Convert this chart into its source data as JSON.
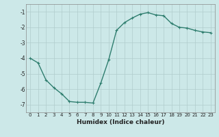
{
  "x": [
    0,
    1,
    2,
    3,
    4,
    5,
    6,
    7,
    8,
    9,
    10,
    11,
    12,
    13,
    14,
    15,
    16,
    17,
    18,
    19,
    20,
    21,
    22,
    23
  ],
  "y": [
    -4.0,
    -4.3,
    -5.4,
    -5.9,
    -6.3,
    -6.8,
    -6.85,
    -6.85,
    -6.9,
    -5.6,
    -4.1,
    -2.2,
    -1.7,
    -1.4,
    -1.15,
    -1.05,
    -1.2,
    -1.25,
    -1.75,
    -2.0,
    -2.05,
    -2.2,
    -2.3,
    -2.35
  ],
  "line_color": "#2e7d6e",
  "marker": "+",
  "marker_size": 3,
  "linewidth": 1.0,
  "xlabel": "Humidex (Indice chaleur)",
  "xlabel_fontsize": 6.5,
  "xtick_fontsize": 5,
  "ytick_fontsize": 5.5,
  "ylim": [
    -7.5,
    -0.5
  ],
  "xlim": [
    -0.5,
    23.5
  ],
  "yticks": [
    -7,
    -6,
    -5,
    -4,
    -3,
    -2,
    -1
  ],
  "xticks": [
    0,
    1,
    2,
    3,
    4,
    5,
    6,
    7,
    8,
    9,
    10,
    11,
    12,
    13,
    14,
    15,
    16,
    17,
    18,
    19,
    20,
    21,
    22,
    23
  ],
  "background_color": "#cce8e8",
  "grid_color": "#b0cccc",
  "spine_color": "#888888"
}
